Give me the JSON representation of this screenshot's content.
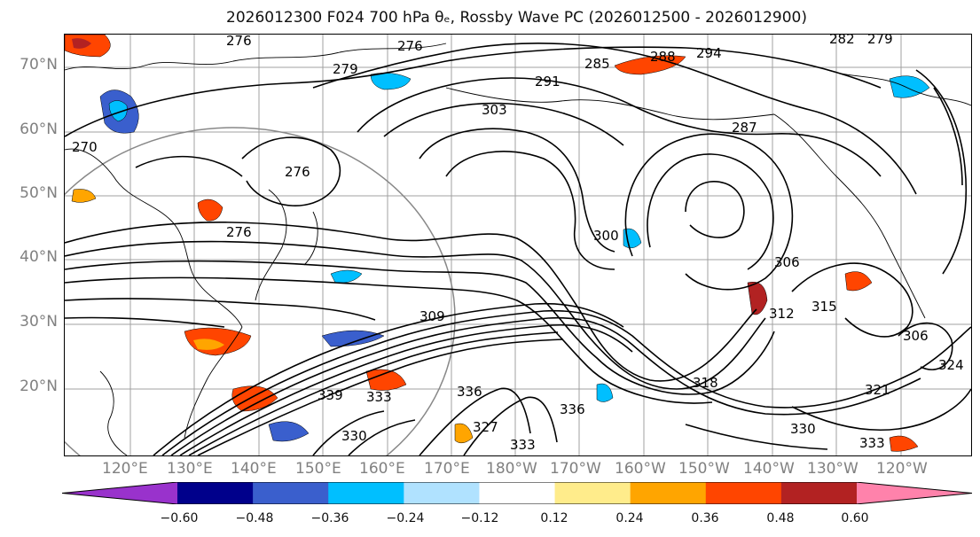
{
  "title": "2026012300 F024 700 hPa θₑ, Rossby Wave PC (2026012500 - 2026012900)",
  "lat_labels": [
    "70°N",
    "60°N",
    "50°N",
    "40°N",
    "30°N",
    "20°N"
  ],
  "lon_labels": [
    "120°E",
    "130°E",
    "140°E",
    "150°E",
    "160°E",
    "170°E",
    "180°W",
    "170°W",
    "160°W",
    "150°W",
    "140°W",
    "130°W",
    "120°W"
  ],
  "contour_labels": [
    "276",
    "276",
    "279",
    "285",
    "288",
    "294",
    "282",
    "279",
    "291",
    "303",
    "287",
    "270",
    "276",
    "276",
    "300",
    "306",
    "315",
    "312",
    "309",
    "306",
    "339",
    "333",
    "330",
    "336",
    "336",
    "327",
    "333",
    "330",
    "333",
    "321",
    "324",
    "318"
  ],
  "colorbar": {
    "ticks": [
      "−0.60",
      "−0.48",
      "−0.36",
      "−0.24",
      "−0.12",
      "0.12",
      "0.24",
      "0.36",
      "0.48",
      "0.60"
    ],
    "colors": [
      "#9932cc",
      "#00008b",
      "#3a5fcd",
      "#00bfff",
      "#b0e2ff",
      "#ffffff",
      "#ffec8b",
      "#ffa500",
      "#ff4500",
      "#b22222",
      "#ff82ab"
    ]
  }
}
